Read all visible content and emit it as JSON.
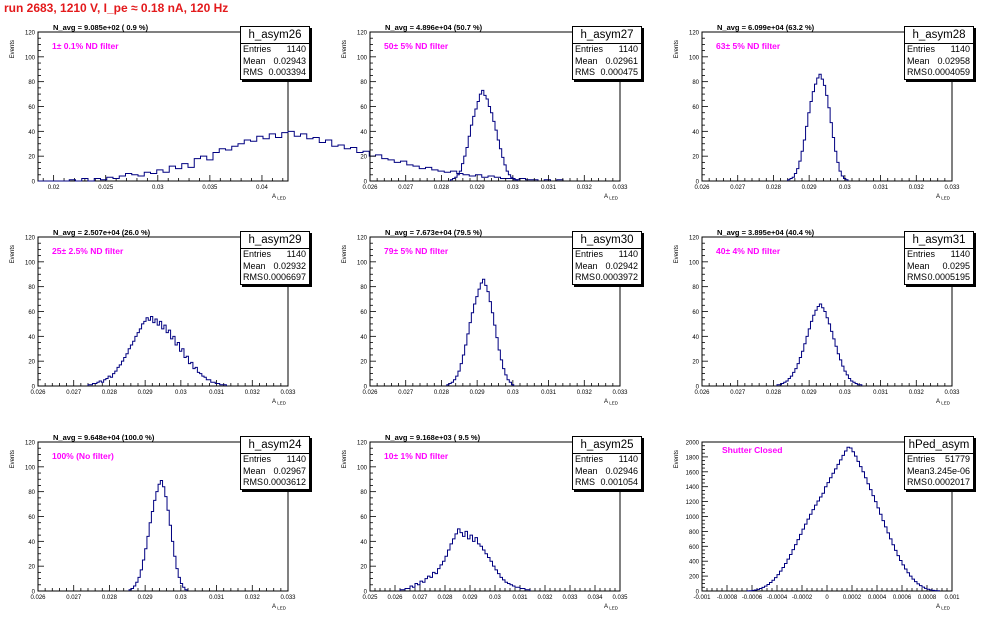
{
  "page_title": "run 2683,  1210 V, I_pe ≈ 0.18 nA, 120 Hz",
  "stat_labels": {
    "entries": "Entries",
    "mean": "Mean",
    "rms": "RMS"
  },
  "colors": {
    "title": "#e31a1c",
    "annotation": "#ff00ff",
    "histogram": "#000080",
    "frame": "#000000"
  },
  "pads": [
    {
      "hist_name": "h_asym26",
      "entries": "1140",
      "mean": "0.02943",
      "rms": "0.003394",
      "navg_label": "N_avg = 9.085e+02 ( 0.9 %)",
      "annotation": "1± 0.1% ND filter"
    },
    {
      "hist_name": "h_asym27",
      "entries": "1140",
      "mean": "0.02961",
      "rms": "0.000475",
      "navg_label": "N_avg = 4.896e+04 (50.7 %)",
      "annotation": "50± 5% ND filter"
    },
    {
      "hist_name": "h_asym28",
      "entries": "1140",
      "mean": "0.02958",
      "rms": "0.0004059",
      "navg_label": "N_avg = 6.099e+04 (63.2 %)",
      "annotation": "63± 5% ND filter"
    },
    {
      "hist_name": "h_asym29",
      "entries": "1140",
      "mean": "0.02932",
      "rms": "0.0006697",
      "navg_label": "N_avg = 2.507e+04 (26.0 %)",
      "annotation": "25± 2.5% ND filter"
    },
    {
      "hist_name": "h_asym30",
      "entries": "1140",
      "mean": "0.02942",
      "rms": "0.0003972",
      "navg_label": "N_avg = 7.673e+04 (79.5 %)",
      "annotation": "79± 5% ND filter"
    },
    {
      "hist_name": "h_asym31",
      "entries": "1140",
      "mean": "0.0295",
      "rms": "0.0005195",
      "navg_label": "N_avg = 3.895e+04 (40.4 %)",
      "annotation": "40± 4% ND filter"
    },
    {
      "hist_name": "h_asym24",
      "entries": "1140",
      "mean": "0.02967",
      "rms": "0.0003612",
      "navg_label": "N_avg = 9.648e+04 (100.0 %)",
      "annotation": "100% (No filter)"
    },
    {
      "hist_name": "h_asym25",
      "entries": "1140",
      "mean": "0.02946",
      "rms": "0.001054",
      "navg_label": "N_avg = 9.168e+03 ( 9.5 %)",
      "annotation": "10± 1% ND filter"
    },
    {
      "hist_name": "hPed_asym",
      "entries": "51779",
      "mean": "3.245e-06",
      "rms": "0.0002017",
      "navg_label": "",
      "annotation": "Shutter Closed"
    }
  ],
  "chart_data": [
    {
      "type": "bar",
      "ylabel": "Events",
      "xlabel": "A_LED",
      "ylim": [
        0,
        120
      ],
      "yticks": [
        0,
        20,
        40,
        60,
        80,
        100,
        120
      ],
      "yticklabels": [
        "0",
        "20",
        "40",
        "60",
        "80",
        "100",
        "120"
      ],
      "xlim": [
        0.0185,
        0.0425
      ],
      "xticks": [
        0.02,
        0.025,
        0.03,
        0.035,
        0.04
      ],
      "xticklabels": [
        "0.02",
        "0.025",
        "0.03",
        "0.035",
        "0.04"
      ],
      "x_start": 0.0185,
      "bin_width": 0.0006,
      "values": [
        0,
        0,
        0,
        0,
        0,
        1,
        0,
        2,
        0,
        2,
        1,
        3,
        2,
        4,
        6,
        5,
        4,
        7,
        6,
        9,
        7,
        12,
        10,
        14,
        11,
        18,
        20,
        17,
        23,
        26,
        25,
        28,
        30,
        33,
        32,
        36,
        34,
        38,
        35,
        39,
        40,
        36,
        38,
        34,
        35,
        31,
        33,
        28,
        29,
        26,
        27,
        23,
        24,
        20,
        21,
        18,
        17,
        15,
        16,
        13,
        12,
        10,
        11,
        9,
        8,
        7,
        8,
        6,
        5,
        4,
        5,
        3,
        4,
        3,
        2,
        2,
        1,
        2,
        1,
        1,
        0,
        1,
        0,
        1,
        0,
        0,
        0,
        0,
        0,
        0
      ]
    },
    {
      "type": "bar",
      "ylabel": "Events",
      "xlabel": "A_LED",
      "ylim": [
        0,
        120
      ],
      "yticks": [
        0,
        20,
        40,
        60,
        80,
        100,
        120
      ],
      "yticklabels": [
        "0",
        "20",
        "40",
        "60",
        "80",
        "100",
        "120"
      ],
      "xlim": [
        0.026,
        0.033
      ],
      "xticks": [
        0.026,
        0.027,
        0.028,
        0.029,
        0.03,
        0.031,
        0.032,
        0.033
      ],
      "xticklabels": [
        "0.026",
        "0.027",
        "0.028",
        "0.029",
        "0.03",
        "0.031",
        "0.032",
        "0.033"
      ],
      "x_start": 0.02825,
      "bin_width": 6.25e-05,
      "values": [
        1,
        2,
        3,
        5,
        8,
        14,
        20,
        27,
        36,
        45,
        52,
        58,
        64,
        70,
        73,
        69,
        66,
        60,
        55,
        48,
        41,
        33,
        26,
        19,
        13,
        8,
        5,
        3,
        2,
        1
      ]
    },
    {
      "type": "bar",
      "ylabel": "Events",
      "xlabel": "A_LED",
      "ylim": [
        0,
        120
      ],
      "yticks": [
        0,
        20,
        40,
        60,
        80,
        100,
        120
      ],
      "yticklabels": [
        "0",
        "20",
        "40",
        "60",
        "80",
        "100",
        "120"
      ],
      "xlim": [
        0.026,
        0.033
      ],
      "xticks": [
        0.026,
        0.027,
        0.028,
        0.029,
        0.03,
        0.031,
        0.032,
        0.033
      ],
      "xticklabels": [
        "0.026",
        "0.027",
        "0.028",
        "0.029",
        "0.03",
        "0.031",
        "0.032",
        "0.033"
      ],
      "x_start": 0.0284,
      "bin_width": 6.25e-05,
      "values": [
        1,
        2,
        3,
        6,
        10,
        16,
        24,
        33,
        44,
        55,
        64,
        72,
        78,
        83,
        86,
        82,
        77,
        69,
        59,
        47,
        35,
        24,
        15,
        8,
        4,
        2,
        1
      ]
    },
    {
      "type": "bar",
      "ylabel": "Events",
      "xlabel": "A_LED",
      "ylim": [
        0,
        120
      ],
      "yticks": [
        0,
        20,
        40,
        60,
        80,
        100,
        120
      ],
      "yticklabels": [
        "0",
        "20",
        "40",
        "60",
        "80",
        "100",
        "120"
      ],
      "xlim": [
        0.026,
        0.033
      ],
      "xticks": [
        0.026,
        0.027,
        0.028,
        0.029,
        0.03,
        0.031,
        0.032,
        0.033
      ],
      "xticklabels": [
        "0.026",
        "0.027",
        "0.028",
        "0.029",
        "0.03",
        "0.031",
        "0.032",
        "0.033"
      ],
      "x_start": 0.0274,
      "bin_width": 6.25e-05,
      "values": [
        1,
        1,
        2,
        2,
        3,
        4,
        3,
        5,
        6,
        8,
        7,
        10,
        12,
        15,
        17,
        20,
        23,
        26,
        30,
        33,
        36,
        40,
        43,
        46,
        50,
        52,
        55,
        53,
        56,
        51,
        54,
        49,
        52,
        46,
        49,
        43,
        45,
        38,
        40,
        33,
        35,
        28,
        30,
        23,
        24,
        18,
        19,
        14,
        15,
        11,
        10,
        8,
        7,
        5,
        5,
        3,
        3,
        2,
        2,
        1,
        1,
        1
      ]
    },
    {
      "type": "bar",
      "ylabel": "Events",
      "xlabel": "A_LED",
      "ylim": [
        0,
        120
      ],
      "yticks": [
        0,
        20,
        40,
        60,
        80,
        100,
        120
      ],
      "yticklabels": [
        "0",
        "20",
        "40",
        "60",
        "80",
        "100",
        "120"
      ],
      "xlim": [
        0.026,
        0.033
      ],
      "xticks": [
        0.026,
        0.027,
        0.028,
        0.029,
        0.03,
        0.031,
        0.032,
        0.033
      ],
      "xticklabels": [
        "0.026",
        "0.027",
        "0.028",
        "0.029",
        "0.03",
        "0.031",
        "0.032",
        "0.033"
      ],
      "x_start": 0.02815,
      "bin_width": 6.25e-05,
      "values": [
        1,
        2,
        3,
        5,
        8,
        12,
        18,
        25,
        33,
        42,
        51,
        59,
        66,
        72,
        78,
        83,
        86,
        81,
        76,
        68,
        59,
        49,
        39,
        29,
        21,
        14,
        9,
        5,
        3,
        1
      ]
    },
    {
      "type": "bar",
      "ylabel": "Events",
      "xlabel": "A_LED",
      "ylim": [
        0,
        120
      ],
      "yticks": [
        0,
        20,
        40,
        60,
        80,
        100,
        120
      ],
      "yticklabels": [
        "0",
        "20",
        "40",
        "60",
        "80",
        "100",
        "120"
      ],
      "xlim": [
        0.026,
        0.033
      ],
      "xticks": [
        0.026,
        0.027,
        0.028,
        0.029,
        0.03,
        0.031,
        0.032,
        0.033
      ],
      "xticklabels": [
        "0.026",
        "0.027",
        "0.028",
        "0.029",
        "0.03",
        "0.031",
        "0.032",
        "0.033"
      ],
      "x_start": 0.0281,
      "bin_width": 6.25e-05,
      "values": [
        1,
        1,
        2,
        3,
        4,
        6,
        8,
        11,
        14,
        18,
        23,
        28,
        34,
        40,
        46,
        52,
        57,
        61,
        64,
        66,
        63,
        60,
        55,
        50,
        44,
        38,
        32,
        26,
        21,
        16,
        12,
        9,
        6,
        4,
        3,
        2,
        1,
        1
      ]
    },
    {
      "type": "bar",
      "ylabel": "Events",
      "xlabel": "A_LED",
      "ylim": [
        0,
        120
      ],
      "yticks": [
        0,
        20,
        40,
        60,
        80,
        100,
        120
      ],
      "yticklabels": [
        "0",
        "20",
        "40",
        "60",
        "80",
        "100",
        "120"
      ],
      "xlim": [
        0.026,
        0.033
      ],
      "xticks": [
        0.026,
        0.027,
        0.028,
        0.029,
        0.03,
        0.031,
        0.032,
        0.033
      ],
      "xticklabels": [
        "0.026",
        "0.027",
        "0.028",
        "0.029",
        "0.03",
        "0.031",
        "0.032",
        "0.033"
      ],
      "x_start": 0.02855,
      "bin_width": 6.25e-05,
      "values": [
        1,
        2,
        4,
        7,
        11,
        17,
        25,
        34,
        44,
        55,
        64,
        73,
        80,
        86,
        89,
        84,
        76,
        65,
        53,
        40,
        28,
        18,
        11,
        6,
        3,
        1
      ]
    },
    {
      "type": "bar",
      "ylabel": "Events",
      "xlabel": "A_LED",
      "ylim": [
        0,
        120
      ],
      "yticks": [
        0,
        20,
        40,
        60,
        80,
        100,
        120
      ],
      "yticklabels": [
        "0",
        "20",
        "40",
        "60",
        "80",
        "100",
        "120"
      ],
      "xlim": [
        0.025,
        0.035
      ],
      "xticks": [
        0.025,
        0.026,
        0.027,
        0.028,
        0.029,
        0.03,
        0.031,
        0.032,
        0.033,
        0.034,
        0.035
      ],
      "xticklabels": [
        "0.025",
        "0.026",
        "0.027",
        "0.028",
        "0.029",
        "0.03",
        "0.031",
        "0.032",
        "0.033",
        "0.034",
        "0.035"
      ],
      "x_start": 0.0262,
      "bin_width": 0.0001,
      "values": [
        1,
        1,
        2,
        2,
        4,
        3,
        6,
        5,
        8,
        7,
        10,
        12,
        11,
        15,
        14,
        18,
        21,
        24,
        28,
        33,
        38,
        42,
        46,
        50,
        47,
        44,
        48,
        42,
        45,
        40,
        43,
        38,
        36,
        33,
        30,
        27,
        24,
        20,
        17,
        14,
        11,
        9,
        7,
        6,
        5,
        4,
        3,
        3,
        2,
        2,
        1,
        1
      ]
    },
    {
      "type": "bar",
      "ylabel": "Events",
      "xlabel": "A_LED",
      "ylim": [
        0,
        2000
      ],
      "yticks": [
        0,
        200,
        400,
        600,
        800,
        1000,
        1200,
        1400,
        1600,
        1800,
        2000
      ],
      "yticklabels": [
        "0",
        "200",
        "400",
        "600",
        "800",
        "1000",
        "1200",
        "1400",
        "1600",
        "1800",
        "2000"
      ],
      "xlim": [
        -0.001,
        0.001
      ],
      "xticks": [
        -0.001,
        -0.0008,
        -0.0006,
        -0.0004,
        -0.0002,
        0,
        0.0002,
        0.0004,
        0.0006,
        0.0008,
        0.001
      ],
      "xticklabels": [
        "-0.001",
        "-0.0008",
        "-0.0006",
        "-0.0004",
        "-0.0002",
        "0",
        "0.0002",
        "0.0004",
        "0.0006",
        "0.0008",
        "0.001"
      ],
      "x_start": -0.00064,
      "bin_width": 2e-05,
      "values": [
        2,
        4,
        8,
        14,
        22,
        34,
        48,
        66,
        88,
        114,
        145,
        180,
        220,
        266,
        316,
        370,
        428,
        490,
        555,
        622,
        690,
        760,
        830,
        898,
        965,
        1030,
        1092,
        1152,
        1208,
        1262,
        1312,
        1400,
        1455,
        1520,
        1580,
        1640,
        1700,
        1760,
        1820,
        1880,
        1930,
        1920,
        1870,
        1810,
        1740,
        1670,
        1600,
        1520,
        1440,
        1360,
        1280,
        1200,
        1115,
        1030,
        945,
        860,
        780,
        700,
        620,
        545,
        475,
        410,
        350,
        295,
        245,
        200,
        160,
        126,
        96,
        72,
        52,
        36,
        24,
        15,
        9,
        5,
        3
      ]
    }
  ]
}
